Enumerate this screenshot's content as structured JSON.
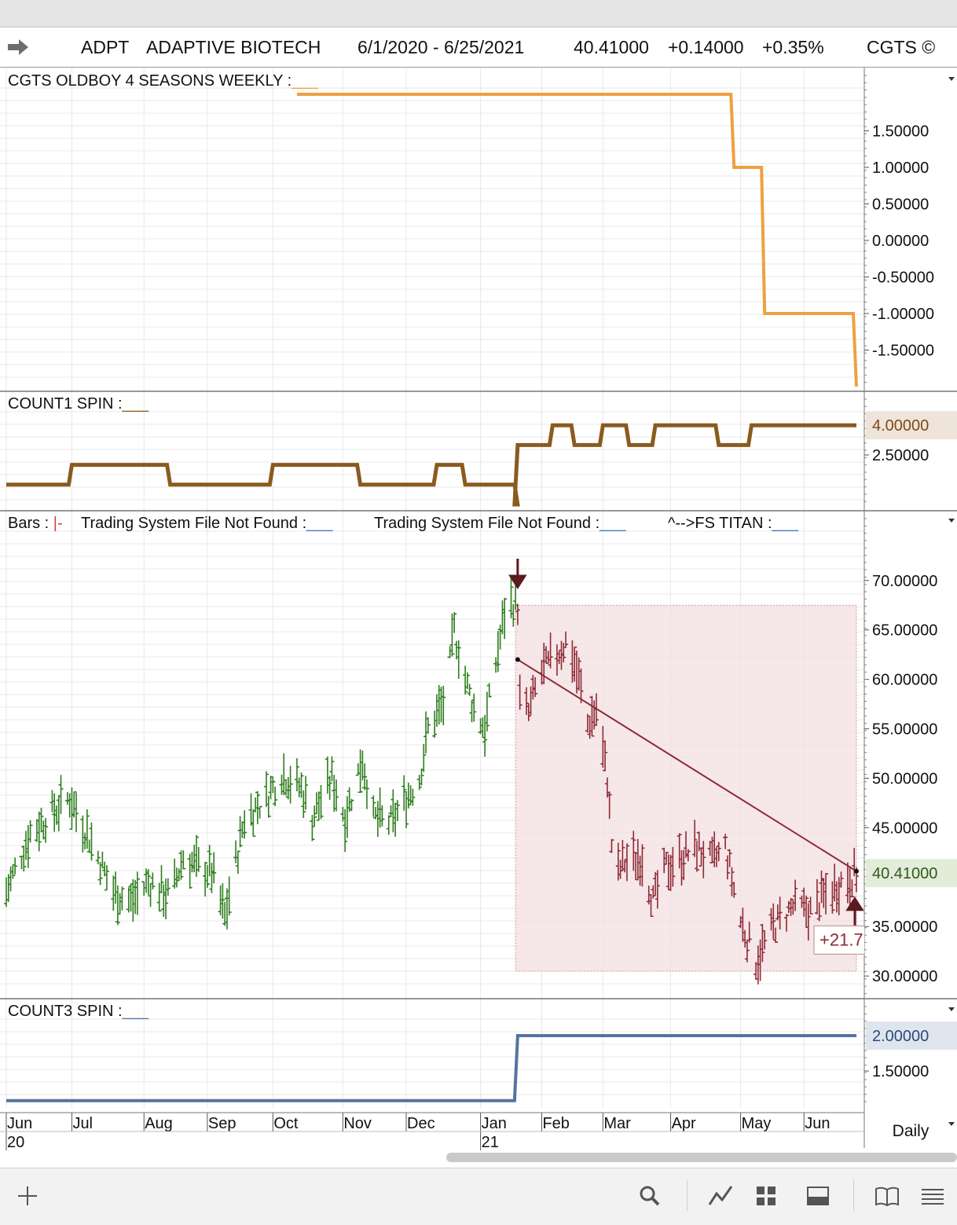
{
  "header": {
    "symbol": "ADPT",
    "name": "ADAPTIVE BIOTECH",
    "date_range": "6/1/2020 - 6/25/2021",
    "last": "40.41000",
    "change": "+0.14000",
    "change_pct": "+0.35%",
    "brand": "CGTS ©"
  },
  "panes": {
    "p1_title": "CGTS OLDBOY 4 SEASONS WEEKLY :",
    "p2_title": "COUNT1 SPIN :",
    "p3_bars": "Bars : ",
    "p3_bars_glyph": "|-",
    "p3_ts1": "Trading System File Not Found :",
    "p3_ts2": "Trading System File Not Found :",
    "p3_titan": "^-->FS TITAN :",
    "p4_title": "COUNT3 SPIN :",
    "blank": "___"
  },
  "colors": {
    "orange": "#f0a040",
    "brown": "#8a5a1e",
    "up": "#2e7d1e",
    "down": "#8e2a35",
    "blue": "#5474a0",
    "shade": "#f3dfe1",
    "grid": "#e8e8e8"
  },
  "chart_data": [
    {
      "type": "line",
      "title": "CGTS OLDBOY 4 SEASONS WEEKLY",
      "color": "orange",
      "ylim": [
        -2,
        2
      ],
      "y_ticks": [
        "1.50000",
        "1.00000",
        "0.50000",
        "0.00000",
        "-0.50000",
        "-1.00000",
        "-1.50000"
      ],
      "y_tick_values": [
        1.5,
        1.0,
        0.5,
        0.0,
        -0.5,
        -1.0,
        -1.5
      ],
      "steps": [
        [
          "2020-10-12",
          2
        ],
        [
          "2021-04-30",
          1
        ],
        [
          "2021-05-14",
          -1
        ],
        [
          "2021-06-22",
          -1
        ],
        [
          "2021-06-25",
          -2
        ]
      ]
    },
    {
      "type": "line",
      "title": "COUNT1 SPIN",
      "color": "brown",
      "ylim": [
        0,
        5
      ],
      "last_value": "4.00000",
      "y_ticks": [
        "2.50000"
      ],
      "y_tick_values": [
        2.5
      ],
      "steps": [
        [
          "2020-06-01",
          1
        ],
        [
          "2020-07-01",
          2
        ],
        [
          "2020-08-15",
          1
        ],
        [
          "2020-10-01",
          2
        ],
        [
          "2020-11-10",
          1
        ],
        [
          "2020-12-15",
          2
        ],
        [
          "2020-12-28",
          1
        ],
        [
          "2021-01-20",
          1
        ],
        [
          "2021-01-21",
          0
        ],
        [
          "2021-01-21",
          3
        ],
        [
          "2021-02-06",
          4
        ],
        [
          "2021-02-16",
          3
        ],
        [
          "2021-03-01",
          4
        ],
        [
          "2021-03-13",
          3
        ],
        [
          "2021-03-25",
          4
        ],
        [
          "2021-04-23",
          3
        ],
        [
          "2021-05-08",
          4
        ],
        [
          "2021-06-25",
          4
        ]
      ]
    },
    {
      "type": "ohlc",
      "title": "ADPT",
      "ylim": [
        28.5,
        73
      ],
      "last_value": "40.41000",
      "y_ticks": [
        "70.00000",
        "65.00000",
        "60.00000",
        "55.00000",
        "50.00000",
        "45.00000",
        "35.00000",
        "30.00000"
      ],
      "y_tick_values": [
        70,
        65,
        60,
        55,
        50,
        45,
        35,
        30
      ],
      "anchors": [
        [
          "2020-06-01",
          38.5
        ],
        [
          "2020-06-12",
          44.5
        ],
        [
          "2020-06-22",
          46.5
        ],
        [
          "2020-06-30",
          48.0
        ],
        [
          "2020-07-09",
          44.0
        ],
        [
          "2020-07-20",
          38.5
        ],
        [
          "2020-07-28",
          37.5
        ],
        [
          "2020-08-05",
          39.5
        ],
        [
          "2020-08-15",
          38.0
        ],
        [
          "2020-08-21",
          42.0
        ],
        [
          "2020-08-28",
          41.0
        ],
        [
          "2020-09-03",
          40.5
        ],
        [
          "2020-09-09",
          36.0
        ],
        [
          "2020-09-18",
          46.0
        ],
        [
          "2020-09-28",
          48.0
        ],
        [
          "2020-10-05",
          50.5
        ],
        [
          "2020-10-14",
          49.0
        ],
        [
          "2020-10-19",
          46.0
        ],
        [
          "2020-10-28",
          50.0
        ],
        [
          "2020-11-03",
          46.0
        ],
        [
          "2020-11-11",
          52.0
        ],
        [
          "2020-11-16",
          46.0
        ],
        [
          "2020-11-24",
          45.5
        ],
        [
          "2020-12-01",
          48.0
        ],
        [
          "2020-12-07",
          50.0
        ],
        [
          "2020-12-11",
          55.0
        ],
        [
          "2020-12-19",
          58.0
        ],
        [
          "2020-12-23",
          65.0
        ],
        [
          "2020-12-28",
          60.0
        ],
        [
          "2021-01-01",
          57.0
        ],
        [
          "2021-01-06",
          55.0
        ],
        [
          "2021-01-12",
          63.0
        ],
        [
          "2021-01-16",
          68.0
        ],
        [
          "2021-01-21",
          67.5
        ],
        [
          "2021-01-22",
          58.0
        ],
        [
          "2021-01-26",
          56.5
        ],
        [
          "2021-01-31",
          60.5
        ],
        [
          "2021-02-08",
          62.5
        ],
        [
          "2021-02-13",
          64.0
        ],
        [
          "2021-02-18",
          60.0
        ],
        [
          "2021-02-22",
          55.5
        ],
        [
          "2021-02-26",
          57.0
        ],
        [
          "2021-03-03",
          50.0
        ],
        [
          "2021-03-06",
          40.0
        ],
        [
          "2021-03-11",
          41.5
        ],
        [
          "2021-03-19",
          42.0
        ],
        [
          "2021-03-24",
          37.5
        ],
        [
          "2021-03-30",
          41.0
        ],
        [
          "2021-04-06",
          42.0
        ],
        [
          "2021-04-13",
          43.0
        ],
        [
          "2021-04-20",
          41.5
        ],
        [
          "2021-04-26",
          43.0
        ],
        [
          "2021-05-03",
          35.5
        ],
        [
          "2021-05-10",
          31.5
        ],
        [
          "2021-05-18",
          35.0
        ],
        [
          "2021-05-27",
          37.0
        ],
        [
          "2021-06-04",
          36.5
        ],
        [
          "2021-06-10",
          38.0
        ],
        [
          "2021-06-18",
          39.5
        ],
        [
          "2021-06-25",
          40.41
        ]
      ],
      "trendline": [
        [
          "2021-01-21",
          62.0
        ],
        [
          "2021-06-25",
          40.6
        ]
      ],
      "trade_box": {
        "start": "2021-01-20",
        "end": "2021-06-25",
        "high": 67.5,
        "low": 30.5
      },
      "sell_arrow": {
        "date": "2021-01-21",
        "price": 69.5
      },
      "buy_arrow": {
        "date": "2021-06-25",
        "price": 37.5
      },
      "label_text": "+21.7",
      "switch_date": "2021-01-21"
    },
    {
      "type": "line",
      "title": "COUNT3 SPIN",
      "color": "blue",
      "ylim": [
        1,
        2.2
      ],
      "last_value": "2.00000",
      "y_ticks": [
        "1.50000"
      ],
      "y_tick_values": [
        1.5
      ],
      "steps": [
        [
          "2020-06-01",
          1.08
        ],
        [
          "2021-01-19",
          1.08
        ],
        [
          "2021-01-21",
          2.0
        ],
        [
          "2021-06-25",
          2.0
        ]
      ]
    }
  ],
  "x_axis": {
    "months": [
      {
        "label": "Jun",
        "date": "2020-06-01",
        "year": "20"
      },
      {
        "label": "Jul",
        "date": "2020-07-01"
      },
      {
        "label": "Aug",
        "date": "2020-08-03"
      },
      {
        "label": "Sep",
        "date": "2020-09-01"
      },
      {
        "label": "Oct",
        "date": "2020-10-01"
      },
      {
        "label": "Nov",
        "date": "2020-11-02"
      },
      {
        "label": "Dec",
        "date": "2020-12-01"
      },
      {
        "label": "Jan",
        "date": "2021-01-04",
        "year": "21"
      },
      {
        "label": "Feb",
        "date": "2021-02-01"
      },
      {
        "label": "Mar",
        "date": "2021-03-01"
      },
      {
        "label": "Apr",
        "date": "2021-04-01"
      },
      {
        "label": "May",
        "date": "2021-05-03"
      },
      {
        "label": "Jun",
        "date": "2021-06-01"
      }
    ],
    "period": "Daily"
  },
  "toolbar": [
    "add-icon",
    "search-icon",
    "draw-icon",
    "grid-icon",
    "panel-icon",
    "book-icon",
    "menu-icon"
  ]
}
